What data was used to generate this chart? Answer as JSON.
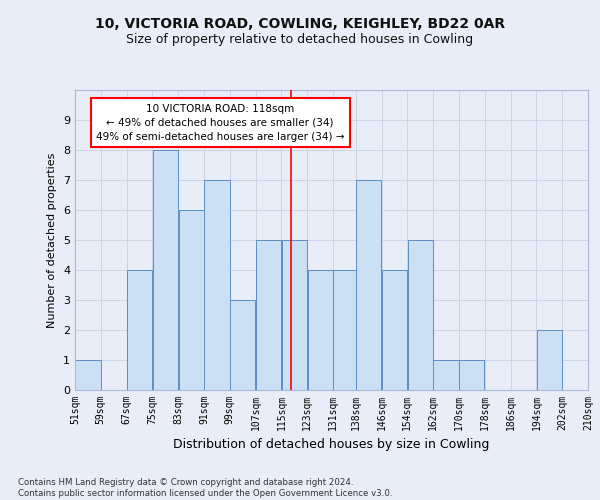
{
  "title1": "10, VICTORIA ROAD, COWLING, KEIGHLEY, BD22 0AR",
  "title2": "Size of property relative to detached houses in Cowling",
  "xlabel": "Distribution of detached houses by size in Cowling",
  "ylabel": "Number of detached properties",
  "bar_labels": [
    "51sqm",
    "59sqm",
    "67sqm",
    "75sqm",
    "83sqm",
    "91sqm",
    "99sqm",
    "107sqm",
    "115sqm",
    "123sqm",
    "131sqm",
    "138sqm",
    "146sqm",
    "154sqm",
    "162sqm",
    "170sqm",
    "178sqm",
    "186sqm",
    "194sqm",
    "202sqm",
    "210sqm"
  ],
  "bar_heights": [
    1,
    0,
    4,
    8,
    6,
    7,
    3,
    5,
    5,
    4,
    4,
    7,
    4,
    5,
    1,
    1,
    0,
    0,
    2,
    0
  ],
  "bar_color": "#cce0f5",
  "bar_edge_color": "#5b8ec5",
  "grid_color": "#c8d0e8",
  "vline_x": 118,
  "vline_color": "red",
  "bin_edges": [
    51,
    59,
    67,
    75,
    83,
    91,
    99,
    107,
    115,
    123,
    131,
    138,
    146,
    154,
    162,
    170,
    178,
    186,
    194,
    202,
    210
  ],
  "annotation_text": "10 VICTORIA ROAD: 118sqm\n← 49% of detached houses are smaller (34)\n49% of semi-detached houses are larger (34) →",
  "annotation_box_color": "white",
  "annotation_box_edge": "red",
  "footnote": "Contains HM Land Registry data © Crown copyright and database right 2024.\nContains public sector information licensed under the Open Government Licence v3.0.",
  "ylim": [
    0,
    10
  ],
  "yticks": [
    0,
    1,
    2,
    3,
    4,
    5,
    6,
    7,
    8,
    9,
    10
  ],
  "bg_color": "#e8edf8"
}
